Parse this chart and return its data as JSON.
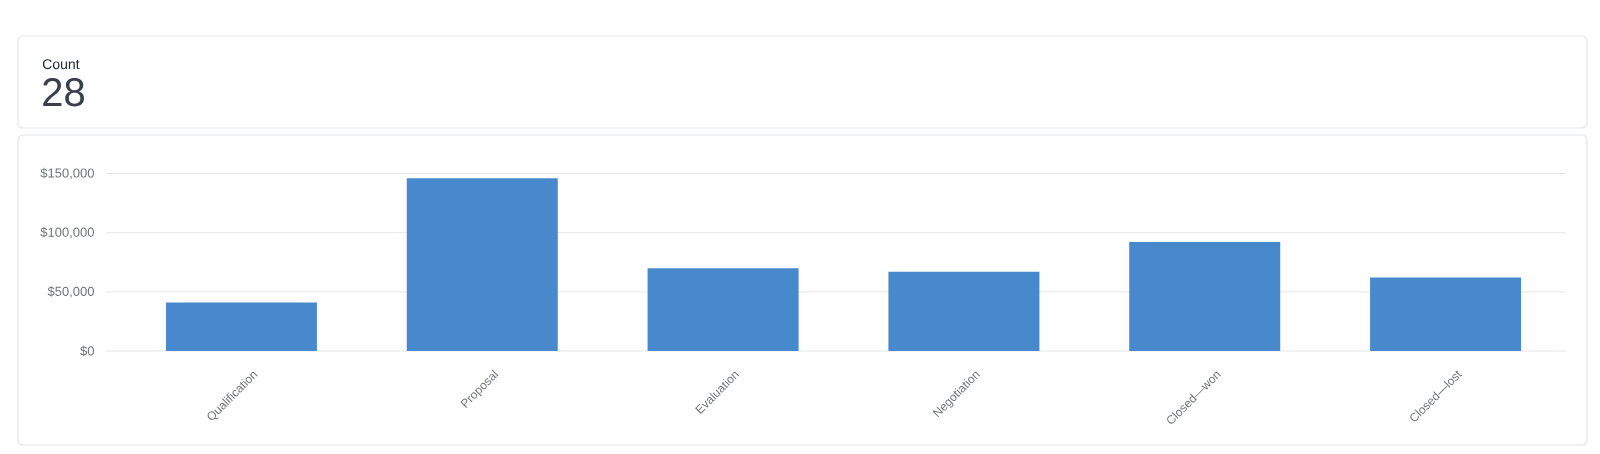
{
  "chart_data": [
    {
      "type": "other",
      "title": "Count",
      "annotations": [
        "28"
      ]
    },
    {
      "type": "bar",
      "categories": [
        "Qualification",
        "Proposal",
        "Evaluation",
        "Negotiation",
        "Closed—won",
        "Closed—lost"
      ],
      "values": [
        41000,
        146000,
        70000,
        67000,
        92000,
        62000
      ],
      "color": "#4888cc",
      "ylim": [
        0,
        150000
      ],
      "yticks": [
        {
          "value": 0,
          "label": "$0"
        },
        {
          "value": 50000,
          "label": "$50,000"
        },
        {
          "value": 100000,
          "label": "$100,000"
        },
        {
          "value": 150000,
          "label": "$150,000"
        }
      ],
      "grid": "y"
    }
  ]
}
